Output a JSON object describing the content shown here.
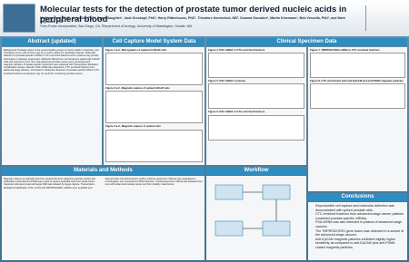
{
  "header": {
    "title": "Molecular tests for the detection of prostate tumor derived nucleic acids in peripheral blood",
    "authors": "Matthias Jost, PhD¹, John Day PhD¹, Ryan Slaughter¹, Jack Groskopf, PhD¹, Harry Rittenhouse, PhD¹, Theodore Korenchuk, MD², Deanna Gonzalez³, Martin Kinsmann³, Bob Vessella, PhD³, and Mark Reynolds, PhD¹",
    "affiliations": "¹Gen-Probe Incorporated, San Diego, CA; ²Department of Urology, University of Washington, Seattle, WA"
  },
  "sections": {
    "abstract": {
      "title": "Abstract (updated)",
      "text": "Background: Prostate cancer is the second leading cause of cancer death in American men. Circulating tumor cells (CTCs) may be an early marker for metastatic disease. Molecular detection of prostate-specific mRNAs in CTC-enriched fractions and in plasma may provide information on disease progression. Methods: Blood from normal donors spiked with LNCaP cells and specimens from men with advanced prostate cancer were processed with magnetic particles. Prostate-specific transcripts were detected with Transcription-Mediated Amplification assays. Results: PSA mRNA was detected in CTC-enriched fractions from advanced-stage patients. Conclusions: Molecular detection of prostate-specific RNA in CTC-enriched fractions and plasma may be useful for monitoring prostate cancer."
    },
    "cell": {
      "title": "Cell Capture Model System Data",
      "figures": [
        "Figure 1 a-C. Micrographs of captured LNCaP cells",
        "Figure 2 a-C. Magnetic capture of spiked LNCaP cells",
        "Figure 3 a-C. Magnetic capture of spiked cells"
      ]
    },
    "clinical": {
      "title": "Clinical Specimen Data",
      "figures": [
        "Figure 4. PSA mRNA in CTC-enriched fractions",
        "Figure 5. PSA mRNA in plasma",
        "Figure 6. PSA mRNA in CTC-enriched fractions",
        "Figure 7. TMPRSS2:ERG mRNA in CTC-enriched fractions",
        "Figure 8. CTC enrichment with anti-EpCAM and anti-PSMA magnetic particles"
      ]
    },
    "methods": {
      "title": "Materials and Methods",
      "text": "Magnetic capture of epithelial cells from peripheral blood: Magnetic particles coated with antibodies to EpCAM and PSMA were used to capture epithelial cells from whole blood. Captured cells were lysed and target RNA was isolated by target capture. Transcription-Mediated Amplification: PSA, PCA3 and TMPRSS2:ERG mRNAs were amplified and detected with chemiluminescent probes. Plasma specimens: Plasma was separated by centrifugation and processed for RNA detection. Clinical specimens: Blood was obtained from men with advanced prostate cancer and from healthy male donors."
    },
    "workflow": {
      "title": "Workflow"
    },
    "conclusions": {
      "title": "Conclusions",
      "bullets": [
        "Reproducible cell capture and molecular detection was demonstrated with spiked prostate cells.",
        "CTC-enriched fractions from advanced-stage cancer patients contained prostate-specific mRNAs.",
        "PSA mRNA was also detected in plasma of advanced-stage cancers.",
        "The TMPRSS2:ERG gene fusion was detected in a subset of the advanced-stage cancers.",
        "Anti-EpCAM magnetic particles exhibited slightly higher sensitivity as compared to anti-EpCAM plus anti-PSMA coated magnetic particles."
      ]
    }
  }
}
